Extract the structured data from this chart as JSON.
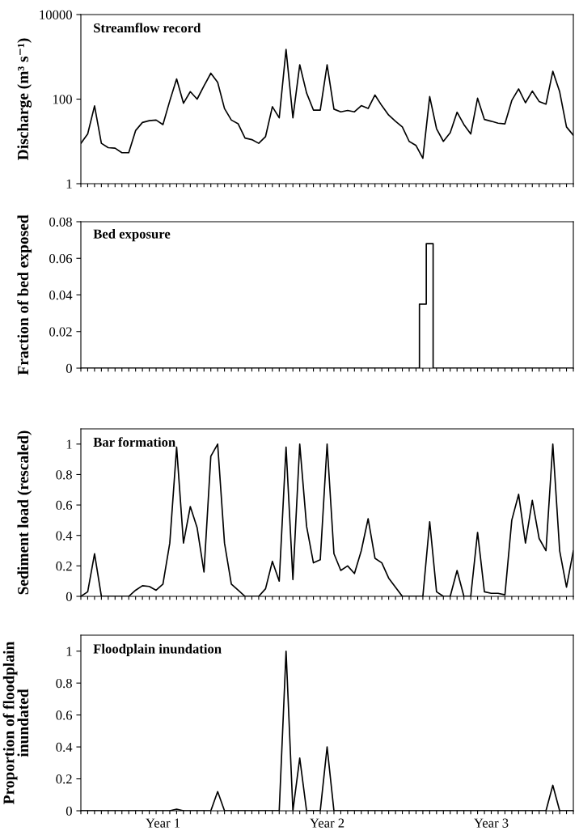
{
  "chart_data": [
    {
      "type": "line",
      "title": "Streamflow record",
      "ylabel": "Discharge (m³ s⁻¹)",
      "log": "y",
      "ylim": [
        1,
        10000
      ],
      "yticks": [
        1,
        100,
        10000
      ],
      "tick_labels": "y",
      "grid": false,
      "legend": false,
      "categories": [
        null,
        null,
        null,
        null,
        null,
        null,
        null,
        null,
        null,
        null,
        null,
        null,
        null,
        null,
        null,
        null,
        null,
        null,
        null,
        null,
        null,
        null,
        null,
        null,
        null,
        null,
        null,
        null,
        null,
        null,
        null,
        null,
        null,
        null,
        null,
        null,
        null,
        null,
        null,
        null,
        null,
        null,
        null,
        null,
        null,
        null,
        null,
        null,
        null,
        null,
        null,
        null,
        null,
        null,
        null,
        null,
        null,
        null,
        null,
        null,
        null,
        null,
        null,
        null,
        null,
        null,
        null,
        null,
        null,
        null,
        null,
        null,
        null
      ],
      "series": [
        {
          "color": "#000000",
          "values": [
            9,
            15,
            69,
            9,
            7.1,
            6.9,
            5.4,
            5.4,
            18,
            28,
            31,
            32,
            25,
            91,
            300,
            80,
            150,
            100,
            205,
            410,
            250,
            60,
            32,
            26,
            12,
            11,
            9,
            13,
            66,
            36,
            1500,
            36,
            650,
            140,
            55,
            55,
            650,
            58,
            50,
            54,
            50,
            70,
            60,
            125,
            70,
            42,
            30,
            22,
            10,
            8,
            4.0,
            115,
            20,
            10,
            16,
            49,
            25,
            15,
            105,
            33,
            30,
            27,
            26,
            93,
            174,
            82,
            155,
            88,
            76,
            455,
            150,
            22,
            14
          ]
        }
      ]
    },
    {
      "type": "step",
      "title": "Bed exposure",
      "ylabel": "Fraction of bed exposed",
      "ylim": [
        0,
        0.08
      ],
      "yticks": [
        0,
        0.02,
        0.04,
        0.06,
        0.08
      ],
      "tick_labels": "y",
      "grid": false,
      "legend": false,
      "categories": [
        null,
        null,
        null,
        null,
        null,
        null,
        null,
        null,
        null,
        null,
        null,
        null,
        null,
        null,
        null,
        null,
        null,
        null,
        null,
        null,
        null,
        null,
        null,
        null,
        null,
        null,
        null,
        null,
        null,
        null,
        null,
        null,
        null,
        null,
        null,
        null,
        null,
        null,
        null,
        null,
        null,
        null,
        null,
        null,
        null,
        null,
        null,
        null,
        null,
        null,
        null,
        null,
        null,
        null,
        null,
        null,
        null,
        null,
        null,
        null,
        null,
        null,
        null,
        null,
        null,
        null,
        null,
        null,
        null,
        null,
        null,
        null,
        null
      ],
      "series": [
        {
          "color": "#000000",
          "values": [
            0,
            0,
            0,
            0,
            0,
            0,
            0,
            0,
            0,
            0,
            0,
            0,
            0,
            0,
            0,
            0,
            0,
            0,
            0,
            0,
            0,
            0,
            0,
            0,
            0,
            0,
            0,
            0,
            0,
            0,
            0,
            0,
            0,
            0,
            0,
            0,
            0,
            0,
            0,
            0,
            0,
            0,
            0,
            0,
            0,
            0,
            0,
            0,
            0,
            0,
            0.035,
            0.068,
            0,
            0,
            0,
            0,
            0,
            0,
            0,
            0,
            0,
            0,
            0,
            0,
            0,
            0,
            0,
            0,
            0,
            0,
            0,
            0,
            0
          ]
        }
      ]
    },
    {
      "type": "line",
      "title": "Bar formation",
      "ylabel": "Sediment load (rescaled)",
      "ylim": [
        0,
        1.1
      ],
      "yticks": [
        0,
        0.2,
        0.4,
        0.6,
        0.8,
        1
      ],
      "tick_labels": "y",
      "grid": false,
      "legend": false,
      "categories": [
        null,
        null,
        null,
        null,
        null,
        null,
        null,
        null,
        null,
        null,
        null,
        null,
        null,
        null,
        null,
        null,
        null,
        null,
        null,
        null,
        null,
        null,
        null,
        null,
        null,
        null,
        null,
        null,
        null,
        null,
        null,
        null,
        null,
        null,
        null,
        null,
        null,
        null,
        null,
        null,
        null,
        null,
        null,
        null,
        null,
        null,
        null,
        null,
        null,
        null,
        null,
        null,
        null,
        null,
        null,
        null,
        null,
        null,
        null,
        null,
        null,
        null,
        null,
        null,
        null,
        null,
        null,
        null,
        null,
        null,
        null,
        null,
        null
      ],
      "series": [
        {
          "color": "#000000",
          "values": [
            0,
            0.03,
            0.28,
            0,
            0,
            0,
            0,
            0,
            0.04,
            0.07,
            0.065,
            0.04,
            0.08,
            0.35,
            0.98,
            0.35,
            0.59,
            0.45,
            0.16,
            0.92,
            1.0,
            0.35,
            0.08,
            0.04,
            0,
            0,
            0,
            0.05,
            0.23,
            0.1,
            0.98,
            0.11,
            1.0,
            0.46,
            0.22,
            0.24,
            1.0,
            0.28,
            0.17,
            0.2,
            0.15,
            0.3,
            0.51,
            0.25,
            0.22,
            0.12,
            0.06,
            0,
            0,
            0,
            0,
            0.49,
            0.03,
            0,
            0,
            0.17,
            0,
            0,
            0.42,
            0.03,
            0.02,
            0.02,
            0.01,
            0.5,
            0.67,
            0.35,
            0.63,
            0.38,
            0.3,
            1.0,
            0.3,
            0.06,
            0.3
          ]
        }
      ]
    },
    {
      "type": "line",
      "title": "Floodplain inundation",
      "ylabel": "Proportion of floodplain\ninundated",
      "ylim": [
        0,
        1.1
      ],
      "yticks": [
        0,
        0.2,
        0.4,
        0.6,
        0.8,
        1
      ],
      "grid": false,
      "legend": false,
      "categories": [
        null,
        null,
        null,
        null,
        null,
        null,
        null,
        null,
        null,
        null,
        null,
        null,
        "Year 1",
        null,
        null,
        null,
        null,
        null,
        null,
        null,
        null,
        null,
        null,
        null,
        null,
        null,
        null,
        null,
        null,
        null,
        null,
        null,
        null,
        null,
        null,
        null,
        "Year 2",
        null,
        null,
        null,
        null,
        null,
        null,
        null,
        null,
        null,
        null,
        null,
        null,
        null,
        null,
        null,
        null,
        null,
        null,
        null,
        null,
        null,
        null,
        null,
        "Year 3",
        null,
        null,
        null,
        null,
        null,
        null,
        null,
        null,
        null,
        null,
        null,
        null
      ],
      "series": [
        {
          "color": "#000000",
          "values": [
            0,
            0,
            0,
            0,
            0,
            0,
            0,
            0,
            0,
            0,
            0,
            0,
            0,
            0,
            0.01,
            0,
            0,
            0,
            0,
            0,
            0.12,
            0,
            0,
            0,
            0,
            0,
            0,
            0,
            0,
            0,
            1.0,
            0,
            0.33,
            0,
            0,
            0,
            0.4,
            0,
            0,
            0,
            0,
            0,
            0,
            0,
            0,
            0,
            0,
            0,
            0,
            0,
            0,
            0,
            0,
            0,
            0,
            0,
            0,
            0,
            0,
            0,
            0,
            0,
            0,
            0,
            0,
            0,
            0,
            0,
            0,
            0.16,
            0,
            0,
            0
          ]
        }
      ]
    }
  ]
}
